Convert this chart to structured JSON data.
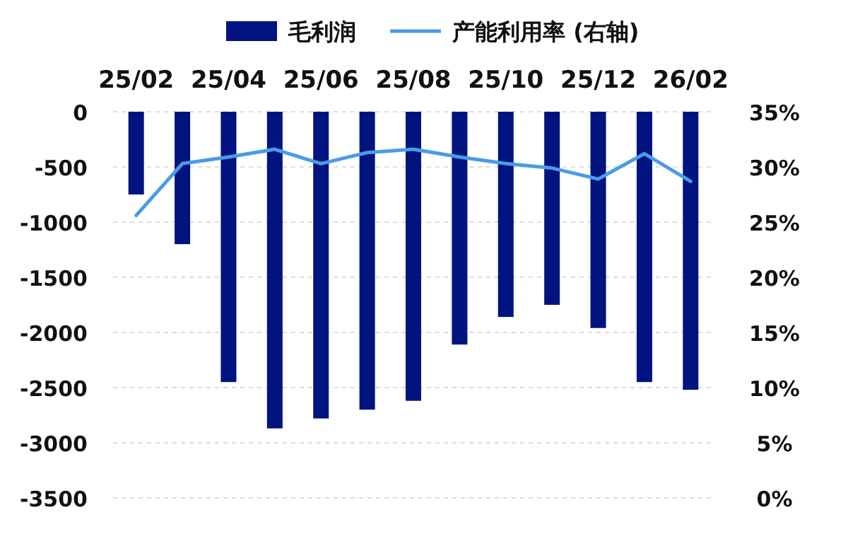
{
  "chart_data": {
    "type": "bar",
    "categories": [
      "25/02",
      null,
      "25/04",
      null,
      "25/06",
      null,
      "25/08",
      null,
      "25/10",
      null,
      "25/12",
      null,
      "26/02"
    ],
    "series": [
      {
        "name": "毛利润",
        "color": "#00137f",
        "values": [
          -750,
          -1200,
          -2450,
          -2870,
          -2780,
          -2700,
          -2620,
          -2110,
          -1860,
          -1750,
          -1960,
          -2450,
          -2520
        ]
      },
      {
        "name": "产能利用率 (右轴)",
        "type": "line",
        "axis": "y2",
        "color": "#4a9be8",
        "values": [
          25.6,
          30.3,
          30.9,
          31.6,
          30.3,
          31.3,
          31.6,
          30.9,
          30.3,
          29.9,
          28.9,
          31.2,
          28.7
        ]
      }
    ],
    "ylim": [
      -3500,
      0
    ],
    "yticks": [
      -3500,
      -3000,
      -2500,
      -2000,
      -1500,
      -1000,
      -500,
      0
    ],
    "y2lim": [
      0,
      35
    ],
    "y2ticks": [
      {
        "value": 0,
        "label": "0%"
      },
      {
        "value": 5,
        "label": "5%"
      },
      {
        "value": 10,
        "label": "10%"
      },
      {
        "value": 15,
        "label": "15%"
      },
      {
        "value": 20,
        "label": "20%"
      },
      {
        "value": 25,
        "label": "25%"
      },
      {
        "value": 30,
        "label": "30%"
      },
      {
        "value": 35,
        "label": "35%"
      }
    ],
    "grid": "y",
    "legend": "top",
    "marker": "none",
    "line_style": "solid"
  }
}
